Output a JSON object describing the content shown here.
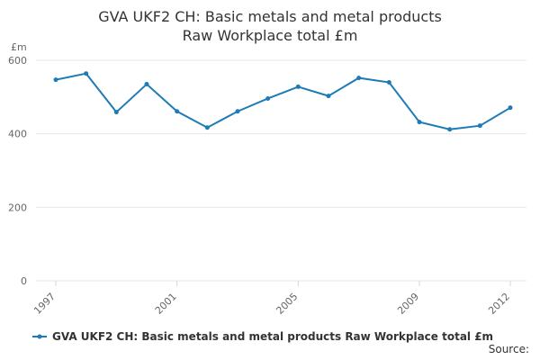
{
  "chart_data": {
    "type": "line",
    "title": "GVA UKF2 CH: Basic metals and metal products Raw Workplace total £m",
    "y_label": "£m",
    "x": [
      1997,
      1998,
      1999,
      2000,
      2001,
      2002,
      2003,
      2004,
      2005,
      2006,
      2007,
      2008,
      2009,
      2010,
      2011,
      2012
    ],
    "series": [
      {
        "name": "GVA UKF2 CH: Basic metals and metal products Raw Workplace total £m",
        "color": "#1f7bb6",
        "values": [
          547,
          564,
          459,
          535,
          461,
          417,
          461,
          496,
          528,
          503,
          552,
          540,
          432,
          412,
          422,
          471
        ]
      }
    ],
    "xlim": [
      1997,
      2012
    ],
    "xticks": [
      1997,
      2001,
      2005,
      2009,
      2012
    ],
    "ylim": [
      0,
      600
    ],
    "yticks": [
      0,
      200,
      400,
      600
    ],
    "grid": true,
    "source": "Source:"
  }
}
